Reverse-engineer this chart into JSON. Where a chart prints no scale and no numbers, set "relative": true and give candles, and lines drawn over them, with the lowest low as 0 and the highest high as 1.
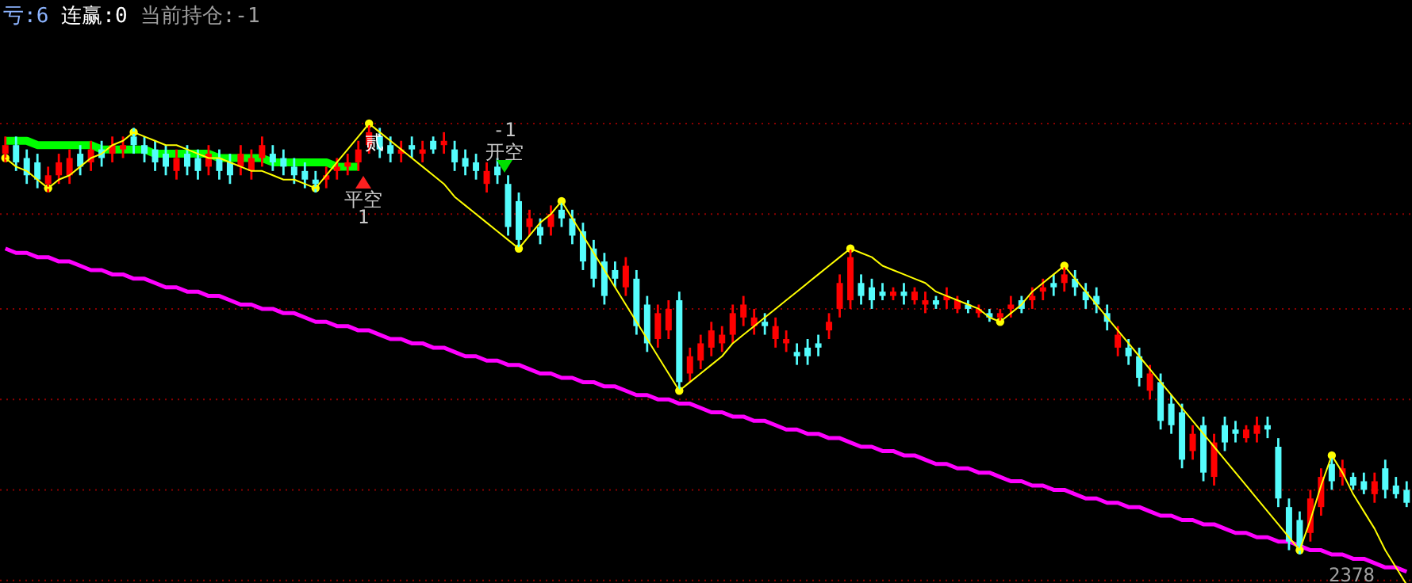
{
  "chart_data": {
    "type": "candlestick",
    "relative": true,
    "ref_lines": [
      {
        "axis": "y",
        "value": 1.0,
        "color": "#8a0000",
        "line_style": "dotted"
      },
      {
        "axis": "y",
        "value": 0.79,
        "color": "#8a0000",
        "line_style": "dotted"
      },
      {
        "axis": "y",
        "value": 0.57,
        "color": "#8a0000",
        "line_style": "dotted"
      },
      {
        "axis": "y",
        "value": 0.36,
        "color": "#8a0000",
        "line_style": "dotted"
      },
      {
        "axis": "y",
        "value": 0.15,
        "color": "#8a0000",
        "line_style": "dotted"
      },
      {
        "axis": "y",
        "value": -0.06,
        "color": "#8a0000",
        "line_style": "dotted"
      }
    ],
    "categories": [
      null,
      null,
      null,
      null,
      null,
      null,
      null,
      null,
      null,
      null,
      null,
      null,
      null,
      null,
      null,
      null,
      null,
      null,
      null,
      null,
      null,
      null,
      null,
      null,
      null,
      null,
      null,
      null,
      null,
      null,
      null,
      null,
      null,
      null,
      null,
      null,
      null,
      null,
      null,
      null,
      null,
      null,
      null,
      null,
      null,
      null,
      null,
      null,
      null,
      null,
      null,
      null,
      null,
      null,
      null,
      null,
      null,
      null,
      null,
      null,
      null,
      null,
      null,
      null,
      null,
      null,
      null,
      null,
      null,
      null,
      null,
      null,
      null,
      null,
      null,
      null,
      null,
      null,
      null,
      null,
      null,
      null,
      null,
      null,
      null,
      null,
      null,
      null,
      null,
      null,
      null,
      null,
      null,
      null,
      null,
      null,
      null,
      null,
      null,
      null,
      null,
      null,
      null,
      null,
      null,
      null,
      null,
      null,
      null,
      null,
      null,
      null,
      null,
      null,
      null,
      null,
      null,
      null,
      null,
      null,
      null,
      null,
      null,
      null,
      null,
      null,
      null,
      null,
      null,
      null,
      null,
      null
    ],
    "annotations": [
      "亏:6",
      "连赢:0",
      "当前持仓:-1",
      "-1",
      "开空",
      "平空",
      "1",
      "贰",
      "2378"
    ],
    "series": [
      {
        "type": "line",
        "color": "#ff00ff",
        "values": [
          0.71,
          0.7,
          0.7,
          0.69,
          0.69,
          0.68,
          0.68,
          0.67,
          0.66,
          0.66,
          0.65,
          0.65,
          0.64,
          0.64,
          0.63,
          0.62,
          0.62,
          0.61,
          0.61,
          0.6,
          0.6,
          0.59,
          0.58,
          0.58,
          0.57,
          0.57,
          0.56,
          0.56,
          0.55,
          0.54,
          0.54,
          0.53,
          0.53,
          0.52,
          0.52,
          0.51,
          0.5,
          0.5,
          0.49,
          0.49,
          0.48,
          0.48,
          0.47,
          0.46,
          0.46,
          0.45,
          0.45,
          0.44,
          0.44,
          0.43,
          0.42,
          0.42,
          0.41,
          0.41,
          0.4,
          0.4,
          0.39,
          0.39,
          0.38,
          0.37,
          0.37,
          0.36,
          0.36,
          0.35,
          0.35,
          0.34,
          0.33,
          0.33,
          0.32,
          0.32,
          0.31,
          0.31,
          0.3,
          0.29,
          0.29,
          0.28,
          0.28,
          0.27,
          0.27,
          0.26,
          0.25,
          0.25,
          0.24,
          0.24,
          0.23,
          0.23,
          0.22,
          0.21,
          0.21,
          0.2,
          0.2,
          0.19,
          0.19,
          0.18,
          0.17,
          0.17,
          0.16,
          0.16,
          0.15,
          0.15,
          0.14,
          0.13,
          0.13,
          0.12,
          0.12,
          0.11,
          0.11,
          0.1,
          0.09,
          0.09,
          0.08,
          0.08,
          0.07,
          0.07,
          0.06,
          0.05,
          0.05,
          0.04,
          0.04,
          0.03,
          0.03,
          0.02,
          0.01,
          0.01,
          0.0,
          0.0,
          -0.01,
          -0.01,
          -0.02,
          -0.03,
          -0.03,
          -0.04
        ]
      },
      {
        "type": "line",
        "color": "#00ff00",
        "values": [
          0.96,
          0.96,
          0.96,
          0.95,
          0.95,
          0.95,
          0.95,
          0.95,
          0.95,
          0.94,
          0.94,
          0.94,
          0.94,
          0.94,
          0.93,
          0.93,
          0.93,
          0.93,
          0.93,
          0.93,
          0.92,
          0.92,
          0.92,
          0.92,
          0.92,
          0.91,
          0.91,
          0.91,
          0.91,
          0.91,
          0.91,
          0.9,
          0.9,
          0.9,
          null,
          null,
          null,
          null,
          null,
          null,
          null,
          null,
          null,
          null,
          null,
          null,
          null,
          null,
          null,
          null,
          null,
          null,
          null,
          null,
          null,
          null,
          null,
          null,
          null,
          null,
          null,
          null,
          null,
          null,
          null,
          null,
          null,
          null,
          null,
          null,
          null,
          null,
          null,
          null,
          null,
          null,
          null,
          null,
          null,
          null,
          null,
          null,
          null,
          null,
          null,
          null,
          null,
          null,
          null,
          null,
          null,
          null,
          null,
          null,
          null,
          null,
          null,
          null,
          null,
          null,
          null,
          null,
          null,
          null,
          null,
          null,
          null,
          null,
          null,
          null,
          null,
          null,
          null,
          null,
          null,
          null,
          null,
          null,
          null,
          null,
          null,
          null,
          null,
          null,
          null,
          null,
          null,
          null,
          null,
          null,
          null,
          null
        ]
      },
      {
        "colors": [
          "#ff0000",
          "#54fcfc",
          "#54fcfc",
          "#54fcfc",
          "#ff0000",
          "#ff0000",
          "#ff0000",
          "#54fcfc",
          "#ff0000",
          "#54fcfc",
          "#ff0000",
          "#ff0000",
          "#54fcfc",
          "#54fcfc",
          "#54fcfc",
          "#54fcfc",
          "#ff0000",
          "#54fcfc",
          "#54fcfc",
          "#ff0000",
          "#54fcfc",
          "#54fcfc",
          "#ff0000",
          "#ff0000",
          "#ff0000",
          "#54fcfc",
          "#54fcfc",
          "#54fcfc",
          "#54fcfc",
          "#54fcfc",
          "#ff0000",
          "#ff0000",
          "#ff0000",
          "#ff0000",
          "#ff0000",
          "#54fcfc",
          "#54fcfc",
          "#ff0000",
          "#54fcfc",
          "#ff0000",
          "#54fcfc",
          "#ff0000",
          "#54fcfc",
          "#54fcfc",
          "#54fcfc",
          "#ff0000",
          "#54fcfc",
          "#54fcfc",
          "#54fcfc",
          "#ff0000",
          "#54fcfc",
          "#ff0000",
          "#54fcfc",
          "#54fcfc",
          "#54fcfc",
          "#54fcfc",
          "#54fcfc",
          "#54fcfc",
          "#ff0000",
          "#54fcfc",
          "#54fcfc",
          "#ff0000",
          "#ff0000",
          "#54fcfc",
          "#ff0000",
          "#ff0000",
          "#ff0000",
          "#ff0000",
          "#ff0000",
          "#ff0000",
          "#ff0000",
          "#54fcfc",
          "#ff0000",
          "#ff0000",
          "#54fcfc",
          "#54fcfc",
          "#54fcfc",
          "#ff0000",
          "#ff0000",
          "#ff0000",
          "#54fcfc",
          "#54fcfc",
          "#54fcfc",
          "#ff0000",
          "#54fcfc",
          "#ff0000",
          "#ff0000",
          "#54fcfc",
          "#ff0000",
          "#ff0000",
          "#54fcfc",
          "#ff0000",
          "#54fcfc",
          "#ff0000",
          "#ff0000",
          "#54fcfc",
          "#ff0000",
          "#ff0000",
          "#54fcfc",
          "#ff0000",
          "#54fcfc",
          "#54fcfc",
          "#54fcfc",
          "#54fcfc",
          "#ff0000",
          "#54fcfc",
          "#54fcfc",
          "#ff0000",
          "#54fcfc",
          "#54fcfc",
          "#54fcfc",
          "#ff0000",
          "#54fcfc",
          "#ff0000",
          "#54fcfc",
          "#54fcfc",
          "#ff0000",
          "#ff0000",
          "#54fcfc",
          "#54fcfc",
          "#54fcfc",
          "#54fcfc",
          "#ff0000",
          "#ff0000",
          "#54fcfc",
          "#ff0000",
          "#54fcfc",
          "#54fcfc",
          "#ff0000",
          "#54fcfc",
          "#54fcfc",
          "#54fcfc"
        ],
        "ohlc": [
          [
            0.93,
            0.97,
            0.91,
            0.95
          ],
          [
            0.95,
            0.97,
            0.89,
            0.91
          ],
          [
            0.92,
            0.94,
            0.86,
            0.88
          ],
          [
            0.91,
            0.93,
            0.85,
            0.87
          ],
          [
            0.86,
            0.9,
            0.84,
            0.88
          ],
          [
            0.88,
            0.93,
            0.86,
            0.91
          ],
          [
            0.88,
            0.94,
            0.86,
            0.92
          ],
          [
            0.93,
            0.95,
            0.88,
            0.9
          ],
          [
            0.91,
            0.96,
            0.89,
            0.94
          ],
          [
            0.94,
            0.96,
            0.9,
            0.92
          ],
          [
            0.93,
            0.97,
            0.91,
            0.95
          ],
          [
            0.94,
            0.97,
            0.92,
            0.95
          ],
          [
            0.97,
            0.99,
            0.93,
            0.95
          ],
          [
            0.95,
            0.97,
            0.91,
            0.93
          ],
          [
            0.94,
            0.96,
            0.89,
            0.91
          ],
          [
            0.93,
            0.95,
            0.88,
            0.9
          ],
          [
            0.89,
            0.94,
            0.87,
            0.92
          ],
          [
            0.93,
            0.95,
            0.88,
            0.9
          ],
          [
            0.92,
            0.94,
            0.87,
            0.89
          ],
          [
            0.9,
            0.95,
            0.88,
            0.93
          ],
          [
            0.92,
            0.94,
            0.87,
            0.89
          ],
          [
            0.91,
            0.93,
            0.86,
            0.88
          ],
          [
            0.9,
            0.95,
            0.88,
            0.93
          ],
          [
            0.89,
            0.94,
            0.87,
            0.92
          ],
          [
            0.92,
            0.97,
            0.9,
            0.95
          ],
          [
            0.93,
            0.95,
            0.89,
            0.91
          ],
          [
            0.92,
            0.94,
            0.88,
            0.9
          ],
          [
            0.9,
            0.92,
            0.86,
            0.88
          ],
          [
            0.89,
            0.91,
            0.85,
            0.87
          ],
          [
            0.87,
            0.89,
            0.84,
            0.86
          ],
          [
            0.87,
            0.9,
            0.85,
            0.88
          ],
          [
            0.89,
            0.92,
            0.87,
            0.9
          ],
          [
            0.9,
            0.93,
            0.88,
            0.91
          ],
          [
            0.91,
            0.96,
            0.89,
            0.94
          ],
          [
            0.95,
            1.0,
            0.93,
            0.98
          ],
          [
            0.97,
            0.99,
            0.92,
            0.94
          ],
          [
            0.95,
            0.97,
            0.91,
            0.93
          ],
          [
            0.93,
            0.96,
            0.91,
            0.94
          ],
          [
            0.95,
            0.97,
            0.92,
            0.94
          ],
          [
            0.93,
            0.96,
            0.91,
            0.94
          ],
          [
            0.96,
            0.97,
            0.93,
            0.94
          ],
          [
            0.95,
            0.98,
            0.93,
            0.96
          ],
          [
            0.94,
            0.96,
            0.89,
            0.91
          ],
          [
            0.92,
            0.94,
            0.88,
            0.9
          ],
          [
            0.91,
            0.93,
            0.87,
            0.89
          ],
          [
            0.86,
            0.91,
            0.84,
            0.89
          ],
          [
            0.9,
            0.92,
            0.86,
            0.88
          ],
          [
            0.86,
            0.88,
            0.74,
            0.76
          ],
          [
            0.82,
            0.84,
            0.71,
            0.73
          ],
          [
            0.76,
            0.8,
            0.74,
            0.78
          ],
          [
            0.76,
            0.78,
            0.72,
            0.74
          ],
          [
            0.76,
            0.81,
            0.74,
            0.79
          ],
          [
            0.8,
            0.82,
            0.76,
            0.78
          ],
          [
            0.78,
            0.8,
            0.72,
            0.74
          ],
          [
            0.75,
            0.77,
            0.66,
            0.68
          ],
          [
            0.71,
            0.73,
            0.62,
            0.64
          ],
          [
            0.68,
            0.7,
            0.58,
            0.6
          ],
          [
            0.66,
            0.68,
            0.62,
            0.64
          ],
          [
            0.62,
            0.69,
            0.6,
            0.67
          ],
          [
            0.64,
            0.66,
            0.51,
            0.53
          ],
          [
            0.58,
            0.6,
            0.47,
            0.49
          ],
          [
            0.5,
            0.58,
            0.48,
            0.56
          ],
          [
            0.52,
            0.59,
            0.5,
            0.57
          ],
          [
            0.59,
            0.61,
            0.38,
            0.4
          ],
          [
            0.42,
            0.48,
            0.4,
            0.46
          ],
          [
            0.45,
            0.51,
            0.43,
            0.49
          ],
          [
            0.48,
            0.54,
            0.46,
            0.52
          ],
          [
            0.49,
            0.53,
            0.47,
            0.51
          ],
          [
            0.51,
            0.58,
            0.49,
            0.56
          ],
          [
            0.55,
            0.6,
            0.53,
            0.58
          ],
          [
            0.53,
            0.57,
            0.51,
            0.55
          ],
          [
            0.54,
            0.56,
            0.51,
            0.53
          ],
          [
            0.5,
            0.55,
            0.48,
            0.53
          ],
          [
            0.49,
            0.52,
            0.47,
            0.5
          ],
          [
            0.47,
            0.49,
            0.44,
            0.46
          ],
          [
            0.48,
            0.5,
            0.44,
            0.46
          ],
          [
            0.49,
            0.51,
            0.46,
            0.48
          ],
          [
            0.52,
            0.56,
            0.5,
            0.54
          ],
          [
            0.57,
            0.65,
            0.55,
            0.63
          ],
          [
            0.59,
            0.71,
            0.57,
            0.69
          ],
          [
            0.63,
            0.65,
            0.58,
            0.6
          ],
          [
            0.62,
            0.64,
            0.57,
            0.59
          ],
          [
            0.61,
            0.63,
            0.59,
            0.6
          ],
          [
            0.6,
            0.62,
            0.59,
            0.61
          ],
          [
            0.61,
            0.63,
            0.58,
            0.6
          ],
          [
            0.59,
            0.62,
            0.58,
            0.61
          ],
          [
            0.58,
            0.61,
            0.56,
            0.59
          ],
          [
            0.59,
            0.6,
            0.57,
            0.58
          ],
          [
            0.59,
            0.62,
            0.57,
            0.6
          ],
          [
            0.57,
            0.6,
            0.56,
            0.59
          ],
          [
            0.58,
            0.59,
            0.56,
            0.57
          ],
          [
            0.56,
            0.58,
            0.55,
            0.57
          ],
          [
            0.56,
            0.57,
            0.54,
            0.55
          ],
          [
            0.55,
            0.57,
            0.54,
            0.56
          ],
          [
            0.57,
            0.6,
            0.55,
            0.58
          ],
          [
            0.59,
            0.6,
            0.56,
            0.57
          ],
          [
            0.59,
            0.62,
            0.57,
            0.6
          ],
          [
            0.61,
            0.64,
            0.59,
            0.62
          ],
          [
            0.63,
            0.65,
            0.6,
            0.62
          ],
          [
            0.63,
            0.67,
            0.61,
            0.65
          ],
          [
            0.64,
            0.66,
            0.6,
            0.62
          ],
          [
            0.61,
            0.63,
            0.57,
            0.59
          ],
          [
            0.6,
            0.62,
            0.56,
            0.58
          ],
          [
            0.56,
            0.58,
            0.52,
            0.54
          ],
          [
            0.48,
            0.53,
            0.46,
            0.51
          ],
          [
            0.48,
            0.5,
            0.44,
            0.46
          ],
          [
            0.46,
            0.48,
            0.39,
            0.41
          ],
          [
            0.38,
            0.44,
            0.36,
            0.42
          ],
          [
            0.4,
            0.42,
            0.29,
            0.31
          ],
          [
            0.35,
            0.37,
            0.28,
            0.3
          ],
          [
            0.33,
            0.35,
            0.2,
            0.22
          ],
          [
            0.24,
            0.3,
            0.22,
            0.28
          ],
          [
            0.3,
            0.32,
            0.17,
            0.19
          ],
          [
            0.18,
            0.28,
            0.16,
            0.26
          ],
          [
            0.3,
            0.32,
            0.24,
            0.26
          ],
          [
            0.29,
            0.31,
            0.26,
            0.28
          ],
          [
            0.27,
            0.3,
            0.26,
            0.29
          ],
          [
            0.28,
            0.32,
            0.26,
            0.3
          ],
          [
            0.3,
            0.32,
            0.27,
            0.29
          ],
          [
            0.25,
            0.27,
            0.11,
            0.13
          ],
          [
            0.11,
            0.13,
            0.01,
            0.03
          ],
          [
            0.08,
            0.1,
            0.0,
            0.02
          ],
          [
            0.05,
            0.15,
            0.03,
            0.13
          ],
          [
            0.11,
            0.2,
            0.09,
            0.18
          ],
          [
            0.21,
            0.23,
            0.15,
            0.17
          ],
          [
            0.18,
            0.22,
            0.16,
            0.2
          ],
          [
            0.18,
            0.19,
            0.15,
            0.16
          ],
          [
            0.17,
            0.19,
            0.14,
            0.15
          ],
          [
            0.14,
            0.19,
            0.12,
            0.17
          ],
          [
            0.2,
            0.22,
            0.13,
            0.15
          ],
          [
            0.16,
            0.18,
            0.13,
            0.14
          ],
          [
            0.15,
            0.17,
            0.11,
            0.12
          ]
        ]
      },
      {
        "type": "scatter",
        "color": "#ffff00",
        "marker": "circle",
        "values": [
          0.92,
          null,
          null,
          null,
          0.85,
          null,
          null,
          null,
          null,
          null,
          null,
          null,
          0.98,
          null,
          null,
          null,
          null,
          null,
          null,
          null,
          null,
          null,
          null,
          null,
          null,
          null,
          null,
          null,
          null,
          0.85,
          null,
          null,
          null,
          null,
          1.0,
          null,
          null,
          null,
          null,
          null,
          null,
          null,
          null,
          null,
          null,
          null,
          null,
          null,
          0.71,
          null,
          null,
          null,
          0.82,
          null,
          null,
          null,
          null,
          null,
          null,
          null,
          null,
          null,
          null,
          0.38,
          null,
          null,
          null,
          null,
          null,
          null,
          null,
          null,
          null,
          null,
          null,
          null,
          null,
          null,
          null,
          0.71,
          null,
          null,
          null,
          null,
          null,
          null,
          null,
          null,
          null,
          null,
          null,
          null,
          null,
          0.54,
          null,
          null,
          null,
          null,
          null,
          0.67,
          null,
          null,
          null,
          null,
          null,
          null,
          null,
          null,
          null,
          null,
          null,
          null,
          null,
          null,
          null,
          null,
          null,
          null,
          null,
          null,
          null,
          0.01,
          null,
          null,
          0.23,
          null,
          null,
          null,
          null,
          null,
          null,
          null
        ]
      },
      {
        "type": "line",
        "color": "#ffff00",
        "values": [
          0.92,
          0.9,
          0.89,
          0.87,
          0.85,
          0.87,
          0.88,
          0.9,
          0.92,
          0.93,
          0.95,
          0.96,
          0.98,
          0.97,
          0.96,
          0.95,
          0.95,
          0.94,
          0.93,
          0.92,
          0.92,
          0.91,
          0.9,
          0.89,
          0.89,
          0.88,
          0.87,
          0.87,
          0.86,
          0.85,
          0.88,
          0.91,
          0.94,
          0.97,
          1.0,
          0.98,
          0.96,
          0.94,
          0.92,
          0.9,
          0.88,
          0.86,
          0.83,
          0.81,
          0.79,
          0.77,
          0.75,
          0.73,
          0.71,
          0.74,
          0.77,
          0.79,
          0.82,
          0.78,
          0.74,
          0.7,
          0.66,
          0.62,
          0.58,
          0.54,
          0.5,
          0.46,
          0.42,
          0.38,
          0.4,
          0.42,
          0.44,
          0.46,
          0.49,
          0.51,
          0.53,
          0.55,
          0.57,
          0.59,
          0.61,
          0.63,
          0.65,
          0.67,
          0.69,
          0.71,
          0.7,
          0.69,
          0.67,
          0.66,
          0.65,
          0.64,
          0.63,
          0.61,
          0.6,
          0.59,
          0.58,
          0.57,
          0.55,
          0.54,
          0.56,
          0.58,
          0.61,
          0.63,
          0.65,
          0.67,
          0.64,
          0.61,
          0.58,
          0.55,
          0.52,
          0.49,
          0.46,
          0.43,
          0.4,
          0.37,
          0.34,
          0.31,
          0.28,
          0.25,
          0.22,
          0.19,
          0.16,
          0.13,
          0.1,
          0.07,
          0.04,
          0.01,
          0.08,
          0.16,
          0.23,
          0.19,
          0.14,
          0.1,
          0.06,
          0.01,
          -0.03,
          -0.07
        ]
      }
    ]
  }
}
